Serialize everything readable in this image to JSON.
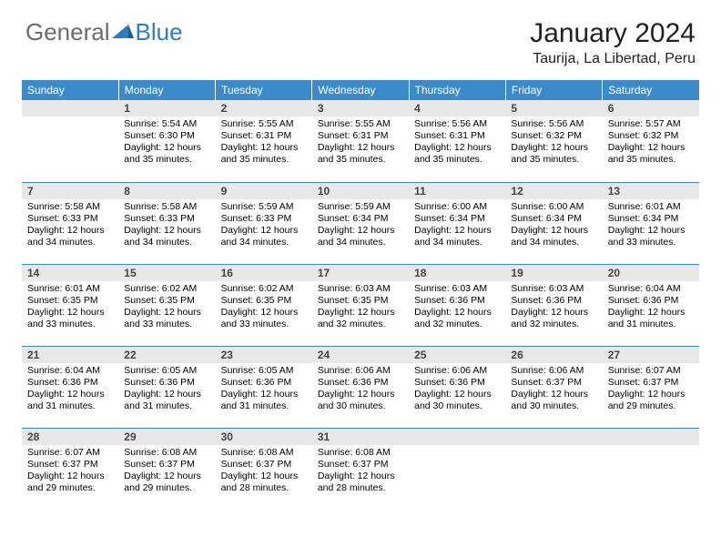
{
  "logo": {
    "text_general": "General",
    "text_blue": "Blue"
  },
  "header": {
    "month_title": "January 2024",
    "location": "Taurija, La Libertad, Peru"
  },
  "colors": {
    "header_bg": "#3b8bca",
    "header_text": "#ffffff",
    "daynum_bg": "#e8e8e8",
    "border": "#3b8bca",
    "logo_gray": "#6b6b6b",
    "logo_blue": "#2d7dc0"
  },
  "weekdays": [
    "Sunday",
    "Monday",
    "Tuesday",
    "Wednesday",
    "Thursday",
    "Friday",
    "Saturday"
  ],
  "weeks": [
    [
      null,
      {
        "n": "1",
        "sunrise": "Sunrise: 5:54 AM",
        "sunset": "Sunset: 6:30 PM",
        "daylight": "Daylight: 12 hours and 35 minutes."
      },
      {
        "n": "2",
        "sunrise": "Sunrise: 5:55 AM",
        "sunset": "Sunset: 6:31 PM",
        "daylight": "Daylight: 12 hours and 35 minutes."
      },
      {
        "n": "3",
        "sunrise": "Sunrise: 5:55 AM",
        "sunset": "Sunset: 6:31 PM",
        "daylight": "Daylight: 12 hours and 35 minutes."
      },
      {
        "n": "4",
        "sunrise": "Sunrise: 5:56 AM",
        "sunset": "Sunset: 6:31 PM",
        "daylight": "Daylight: 12 hours and 35 minutes."
      },
      {
        "n": "5",
        "sunrise": "Sunrise: 5:56 AM",
        "sunset": "Sunset: 6:32 PM",
        "daylight": "Daylight: 12 hours and 35 minutes."
      },
      {
        "n": "6",
        "sunrise": "Sunrise: 5:57 AM",
        "sunset": "Sunset: 6:32 PM",
        "daylight": "Daylight: 12 hours and 35 minutes."
      }
    ],
    [
      {
        "n": "7",
        "sunrise": "Sunrise: 5:58 AM",
        "sunset": "Sunset: 6:33 PM",
        "daylight": "Daylight: 12 hours and 34 minutes."
      },
      {
        "n": "8",
        "sunrise": "Sunrise: 5:58 AM",
        "sunset": "Sunset: 6:33 PM",
        "daylight": "Daylight: 12 hours and 34 minutes."
      },
      {
        "n": "9",
        "sunrise": "Sunrise: 5:59 AM",
        "sunset": "Sunset: 6:33 PM",
        "daylight": "Daylight: 12 hours and 34 minutes."
      },
      {
        "n": "10",
        "sunrise": "Sunrise: 5:59 AM",
        "sunset": "Sunset: 6:34 PM",
        "daylight": "Daylight: 12 hours and 34 minutes."
      },
      {
        "n": "11",
        "sunrise": "Sunrise: 6:00 AM",
        "sunset": "Sunset: 6:34 PM",
        "daylight": "Daylight: 12 hours and 34 minutes."
      },
      {
        "n": "12",
        "sunrise": "Sunrise: 6:00 AM",
        "sunset": "Sunset: 6:34 PM",
        "daylight": "Daylight: 12 hours and 34 minutes."
      },
      {
        "n": "13",
        "sunrise": "Sunrise: 6:01 AM",
        "sunset": "Sunset: 6:34 PM",
        "daylight": "Daylight: 12 hours and 33 minutes."
      }
    ],
    [
      {
        "n": "14",
        "sunrise": "Sunrise: 6:01 AM",
        "sunset": "Sunset: 6:35 PM",
        "daylight": "Daylight: 12 hours and 33 minutes."
      },
      {
        "n": "15",
        "sunrise": "Sunrise: 6:02 AM",
        "sunset": "Sunset: 6:35 PM",
        "daylight": "Daylight: 12 hours and 33 minutes."
      },
      {
        "n": "16",
        "sunrise": "Sunrise: 6:02 AM",
        "sunset": "Sunset: 6:35 PM",
        "daylight": "Daylight: 12 hours and 33 minutes."
      },
      {
        "n": "17",
        "sunrise": "Sunrise: 6:03 AM",
        "sunset": "Sunset: 6:35 PM",
        "daylight": "Daylight: 12 hours and 32 minutes."
      },
      {
        "n": "18",
        "sunrise": "Sunrise: 6:03 AM",
        "sunset": "Sunset: 6:36 PM",
        "daylight": "Daylight: 12 hours and 32 minutes."
      },
      {
        "n": "19",
        "sunrise": "Sunrise: 6:03 AM",
        "sunset": "Sunset: 6:36 PM",
        "daylight": "Daylight: 12 hours and 32 minutes."
      },
      {
        "n": "20",
        "sunrise": "Sunrise: 6:04 AM",
        "sunset": "Sunset: 6:36 PM",
        "daylight": "Daylight: 12 hours and 31 minutes."
      }
    ],
    [
      {
        "n": "21",
        "sunrise": "Sunrise: 6:04 AM",
        "sunset": "Sunset: 6:36 PM",
        "daylight": "Daylight: 12 hours and 31 minutes."
      },
      {
        "n": "22",
        "sunrise": "Sunrise: 6:05 AM",
        "sunset": "Sunset: 6:36 PM",
        "daylight": "Daylight: 12 hours and 31 minutes."
      },
      {
        "n": "23",
        "sunrise": "Sunrise: 6:05 AM",
        "sunset": "Sunset: 6:36 PM",
        "daylight": "Daylight: 12 hours and 31 minutes."
      },
      {
        "n": "24",
        "sunrise": "Sunrise: 6:06 AM",
        "sunset": "Sunset: 6:36 PM",
        "daylight": "Daylight: 12 hours and 30 minutes."
      },
      {
        "n": "25",
        "sunrise": "Sunrise: 6:06 AM",
        "sunset": "Sunset: 6:36 PM",
        "daylight": "Daylight: 12 hours and 30 minutes."
      },
      {
        "n": "26",
        "sunrise": "Sunrise: 6:06 AM",
        "sunset": "Sunset: 6:37 PM",
        "daylight": "Daylight: 12 hours and 30 minutes."
      },
      {
        "n": "27",
        "sunrise": "Sunrise: 6:07 AM",
        "sunset": "Sunset: 6:37 PM",
        "daylight": "Daylight: 12 hours and 29 minutes."
      }
    ],
    [
      {
        "n": "28",
        "sunrise": "Sunrise: 6:07 AM",
        "sunset": "Sunset: 6:37 PM",
        "daylight": "Daylight: 12 hours and 29 minutes."
      },
      {
        "n": "29",
        "sunrise": "Sunrise: 6:08 AM",
        "sunset": "Sunset: 6:37 PM",
        "daylight": "Daylight: 12 hours and 29 minutes."
      },
      {
        "n": "30",
        "sunrise": "Sunrise: 6:08 AM",
        "sunset": "Sunset: 6:37 PM",
        "daylight": "Daylight: 12 hours and 28 minutes."
      },
      {
        "n": "31",
        "sunrise": "Sunrise: 6:08 AM",
        "sunset": "Sunset: 6:37 PM",
        "daylight": "Daylight: 12 hours and 28 minutes."
      },
      null,
      null,
      null
    ]
  ]
}
